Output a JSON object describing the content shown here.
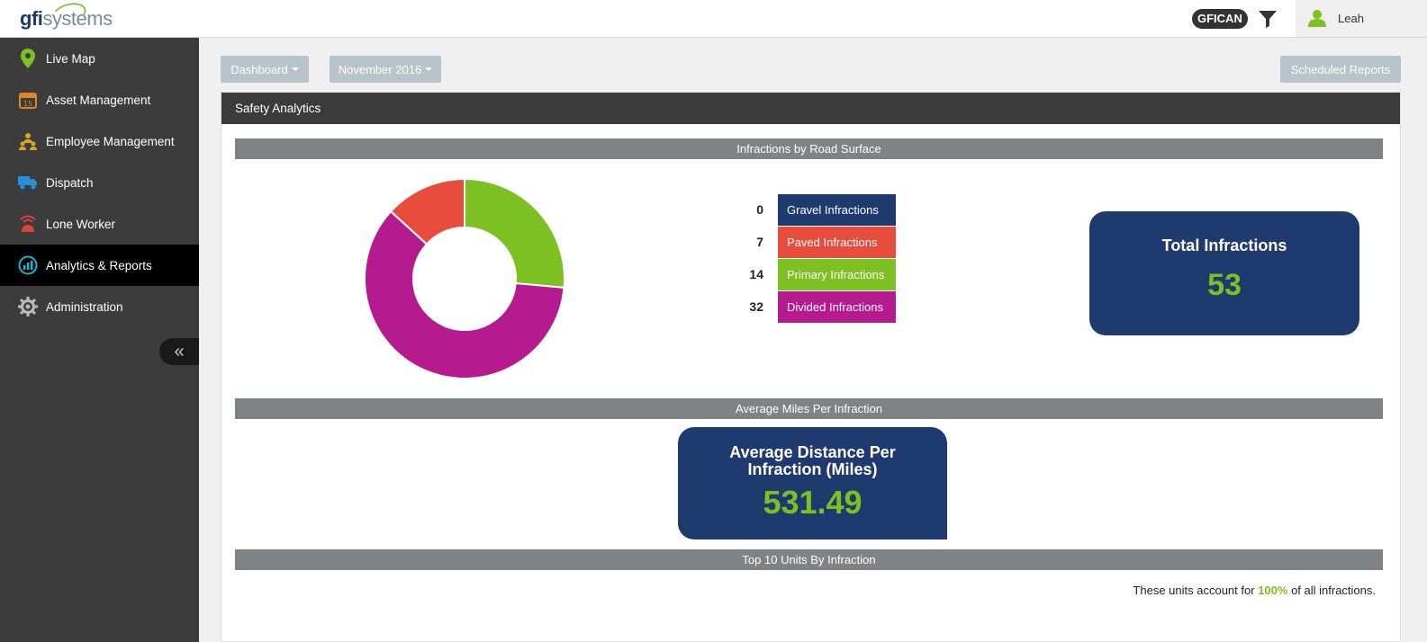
{
  "brand": {
    "logo_bold": "gfi",
    "logo_light": "systems"
  },
  "header": {
    "tenant": "GFICAN",
    "user_name": "Leah"
  },
  "sidebar": {
    "items": [
      {
        "label": "Live Map",
        "icon": "map-pin-icon"
      },
      {
        "label": "Asset Management",
        "icon": "calendar-icon"
      },
      {
        "label": "Employee Management",
        "icon": "people-icon"
      },
      {
        "label": "Dispatch",
        "icon": "truck-icon"
      },
      {
        "label": "Lone Worker",
        "icon": "beacon-icon"
      },
      {
        "label": "Analytics & Reports",
        "icon": "analytics-icon",
        "active": true
      },
      {
        "label": "Administration",
        "icon": "gear-icon"
      }
    ],
    "collapse_glyph": "«"
  },
  "toolbar": {
    "dashboard_label": "Dashboard",
    "period_label": "November 2016",
    "scheduled_label": "Scheduled Reports"
  },
  "panel": {
    "title": "Safety Analytics",
    "section1_title": "Infractions by Road Surface",
    "section2_title": "Average Miles Per Infraction",
    "section3_title": "Top 10 Units By Infraction"
  },
  "chart_data": {
    "type": "pie",
    "categories": [
      "Gravel Infractions",
      "Paved Infractions",
      "Primary Infractions",
      "Divided Infractions"
    ],
    "values": [
      0,
      7,
      14,
      32
    ],
    "colors": [
      "#1f3a6e",
      "#e74c3c",
      "#7dc022",
      "#b51a8e"
    ],
    "donut": true
  },
  "legend": [
    {
      "count": "0",
      "label": "Gravel Infractions",
      "color": "#1f3a6e"
    },
    {
      "count": "7",
      "label": "Paved Infractions",
      "color": "#e74c3c"
    },
    {
      "count": "14",
      "label": "Primary Infractions",
      "color": "#7dc022"
    },
    {
      "count": "32",
      "label": "Divided Infractions",
      "color": "#b51a8e"
    }
  ],
  "kpi_total": {
    "title": "Total Infractions",
    "value": "53"
  },
  "kpi_avg": {
    "title_line1": "Average Distance Per",
    "title_line2": "Infraction (Miles)",
    "value": "531.49"
  },
  "footnote": {
    "prefix": "These units account for",
    "percent": "100%",
    "suffix": "of all infractions."
  },
  "colors": {
    "accent_green": "#7dc022",
    "kpi_navy": "#1f3a6e",
    "sidebar_bg": "#3c3c3c"
  }
}
